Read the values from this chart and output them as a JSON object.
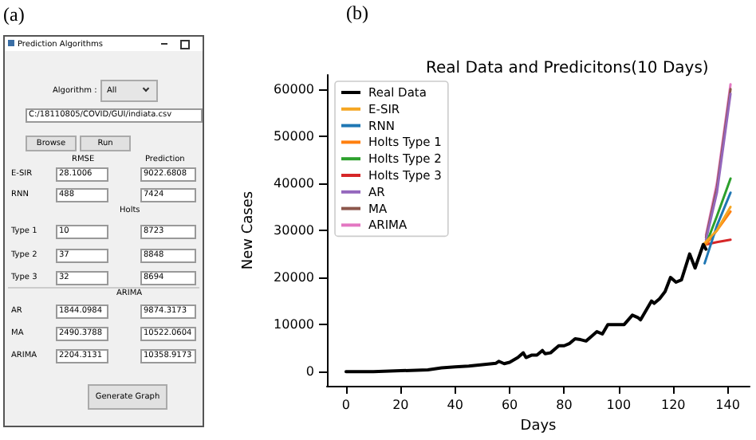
{
  "chart_data": [
    {
      "type": "other",
      "title": "Prediction Algorithms",
      "annotations": [
        "(a)",
        "Algorithm :",
        "All",
        "C:/18110805/COVID/GUI/indiata.csv",
        "Browse",
        "Run",
        "RMSE",
        "Prediction",
        "E-SIR",
        "28.1006",
        "9022.6808",
        "RNN",
        "488",
        "7424",
        "Holts",
        "Type 1",
        "10",
        "8723",
        "Type 2",
        "37",
        "8848",
        "Type 3",
        "32",
        "8694",
        "ARIMA",
        "AR",
        "1844.0984",
        "9874.3173",
        "MA",
        "2490.3788",
        "10522.0604",
        "ARIMA",
        "2204.3131",
        "10358.9173",
        "Generate Graph"
      ]
    },
    {
      "type": "line",
      "title": "Real Data and Predicitons(10 Days)",
      "xlabel": "Days",
      "ylabel": "New Cases",
      "annotations": [
        "(b)"
      ],
      "xlim": [
        -7,
        148
      ],
      "ylim": [
        -3000,
        63000
      ],
      "xticks": [
        0,
        20,
        40,
        60,
        80,
        100,
        120,
        140
      ],
      "yticks": [
        0,
        10000,
        20000,
        30000,
        40000,
        50000,
        60000
      ],
      "legend": "top left",
      "grid": false,
      "series": [
        {
          "name": "Real Data",
          "color": "#000000",
          "x": [
            0,
            10,
            20,
            30,
            35,
            40,
            45,
            50,
            55,
            56,
            58,
            60,
            63,
            65,
            66,
            68,
            70,
            72,
            73,
            75,
            78,
            80,
            82,
            84,
            86,
            88,
            90,
            92,
            94,
            96,
            100,
            102,
            105,
            107,
            108,
            110,
            112,
            113,
            115,
            117,
            119,
            121,
            123,
            126,
            128,
            131,
            132
          ],
          "values": [
            0,
            0,
            200,
            400,
            800,
            1000,
            1200,
            1500,
            1800,
            2200,
            1700,
            2000,
            3000,
            4000,
            3000,
            3500,
            3500,
            4500,
            3800,
            4000,
            5500,
            5500,
            6000,
            7000,
            6800,
            6500,
            7500,
            8500,
            8000,
            10000,
            10000,
            10000,
            12000,
            11500,
            11000,
            13000,
            15000,
            14500,
            15500,
            17000,
            20000,
            19000,
            19500,
            25000,
            22000,
            27000,
            26000
          ]
        },
        {
          "name": "E-SIR",
          "color": "#f5a623",
          "x": [
            131,
            136,
            141
          ],
          "values": [
            27000,
            30000,
            35000
          ]
        },
        {
          "name": "RNN",
          "color": "#1f77b4",
          "x": [
            131.5,
            136,
            141
          ],
          "values": [
            23000,
            31000,
            38000
          ]
        },
        {
          "name": "Holts Type 1",
          "color": "#ff7f0e",
          "x": [
            132,
            136,
            141
          ],
          "values": [
            27000,
            30000,
            34000
          ]
        },
        {
          "name": "Holts Type 2",
          "color": "#2ca02c",
          "x": [
            132,
            136,
            141
          ],
          "values": [
            27000,
            33000,
            41000
          ]
        },
        {
          "name": "Holts Type 3",
          "color": "#d62728",
          "x": [
            132,
            136,
            141
          ],
          "values": [
            27000,
            27500,
            28000
          ]
        },
        {
          "name": "AR",
          "color": "#9467bd",
          "x": [
            132,
            136,
            141
          ],
          "values": [
            28000,
            38000,
            59000
          ]
        },
        {
          "name": "MA",
          "color": "#8c564b",
          "x": [
            132,
            136,
            141
          ],
          "values": [
            28500,
            39000,
            60000
          ]
        },
        {
          "name": "ARIMA",
          "color": "#e377c2",
          "x": [
            132,
            136,
            141
          ],
          "values": [
            29000,
            40000,
            61000
          ]
        }
      ]
    }
  ]
}
